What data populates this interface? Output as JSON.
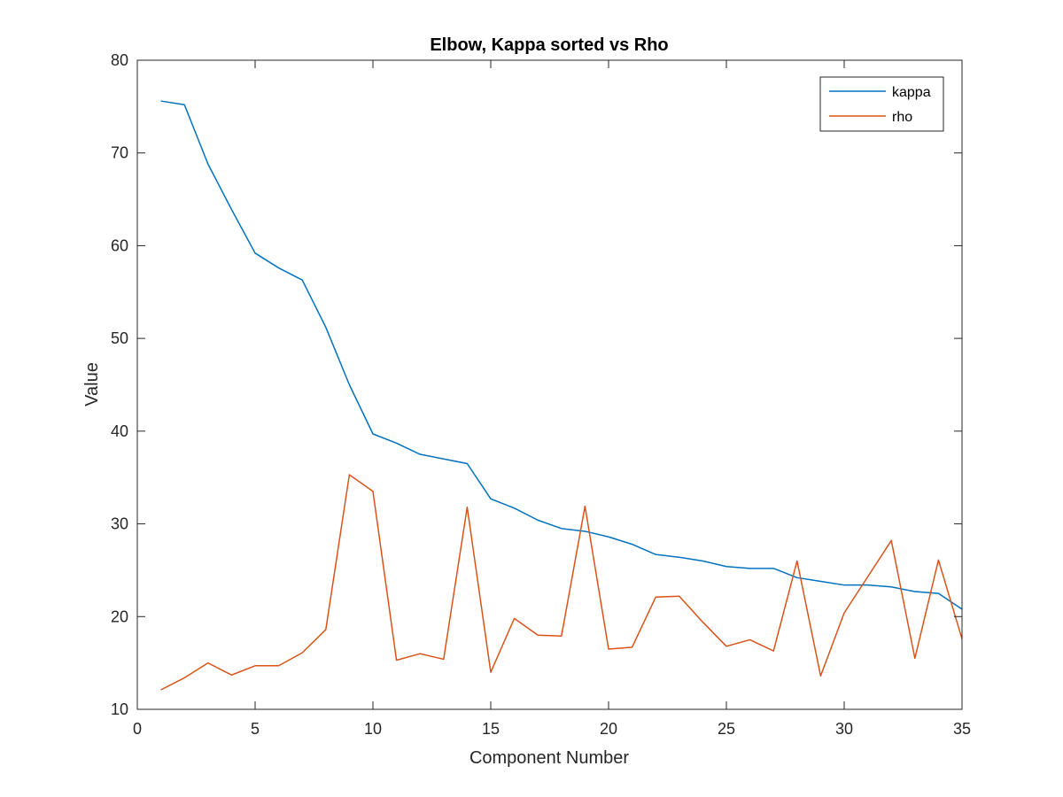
{
  "chart_data": {
    "type": "line",
    "title": "Elbow, Kappa sorted vs Rho",
    "xlabel": "Component Number",
    "ylabel": "Value",
    "xlim": [
      0,
      35
    ],
    "ylim": [
      10,
      80
    ],
    "xticks": [
      0,
      5,
      10,
      15,
      20,
      25,
      30,
      35
    ],
    "yticks": [
      10,
      20,
      30,
      40,
      50,
      60,
      70,
      80
    ],
    "grid": false,
    "legend_position": "top-right",
    "x": [
      1,
      2,
      3,
      4,
      5,
      6,
      7,
      8,
      9,
      10,
      11,
      12,
      13,
      14,
      15,
      16,
      17,
      18,
      19,
      20,
      21,
      22,
      23,
      24,
      25,
      26,
      27,
      28,
      29,
      30,
      31,
      32,
      33,
      34,
      35
    ],
    "series": [
      {
        "name": "kappa",
        "color": "#0072BD",
        "values": [
          75.6,
          75.2,
          68.8,
          63.9,
          59.2,
          57.6,
          56.3,
          51.2,
          45.0,
          39.7,
          38.7,
          37.5,
          37.0,
          36.5,
          32.7,
          31.7,
          30.4,
          29.5,
          29.2,
          28.6,
          27.8,
          26.7,
          26.4,
          26.0,
          25.4,
          25.2,
          25.2,
          24.2,
          23.8,
          23.4,
          23.4,
          23.2,
          22.7,
          22.5,
          20.8
        ]
      },
      {
        "name": "rho",
        "color": "#D95319",
        "values": [
          12.1,
          13.4,
          15.0,
          13.7,
          14.7,
          14.7,
          16.1,
          18.6,
          35.3,
          33.5,
          15.3,
          16.0,
          15.4,
          31.8,
          14.0,
          19.8,
          18.0,
          17.9,
          31.9,
          16.5,
          16.7,
          22.1,
          22.2,
          19.4,
          16.8,
          17.5,
          16.3,
          26.0,
          13.6,
          20.4,
          24.3,
          28.2,
          15.5,
          26.1,
          17.6
        ]
      }
    ]
  }
}
